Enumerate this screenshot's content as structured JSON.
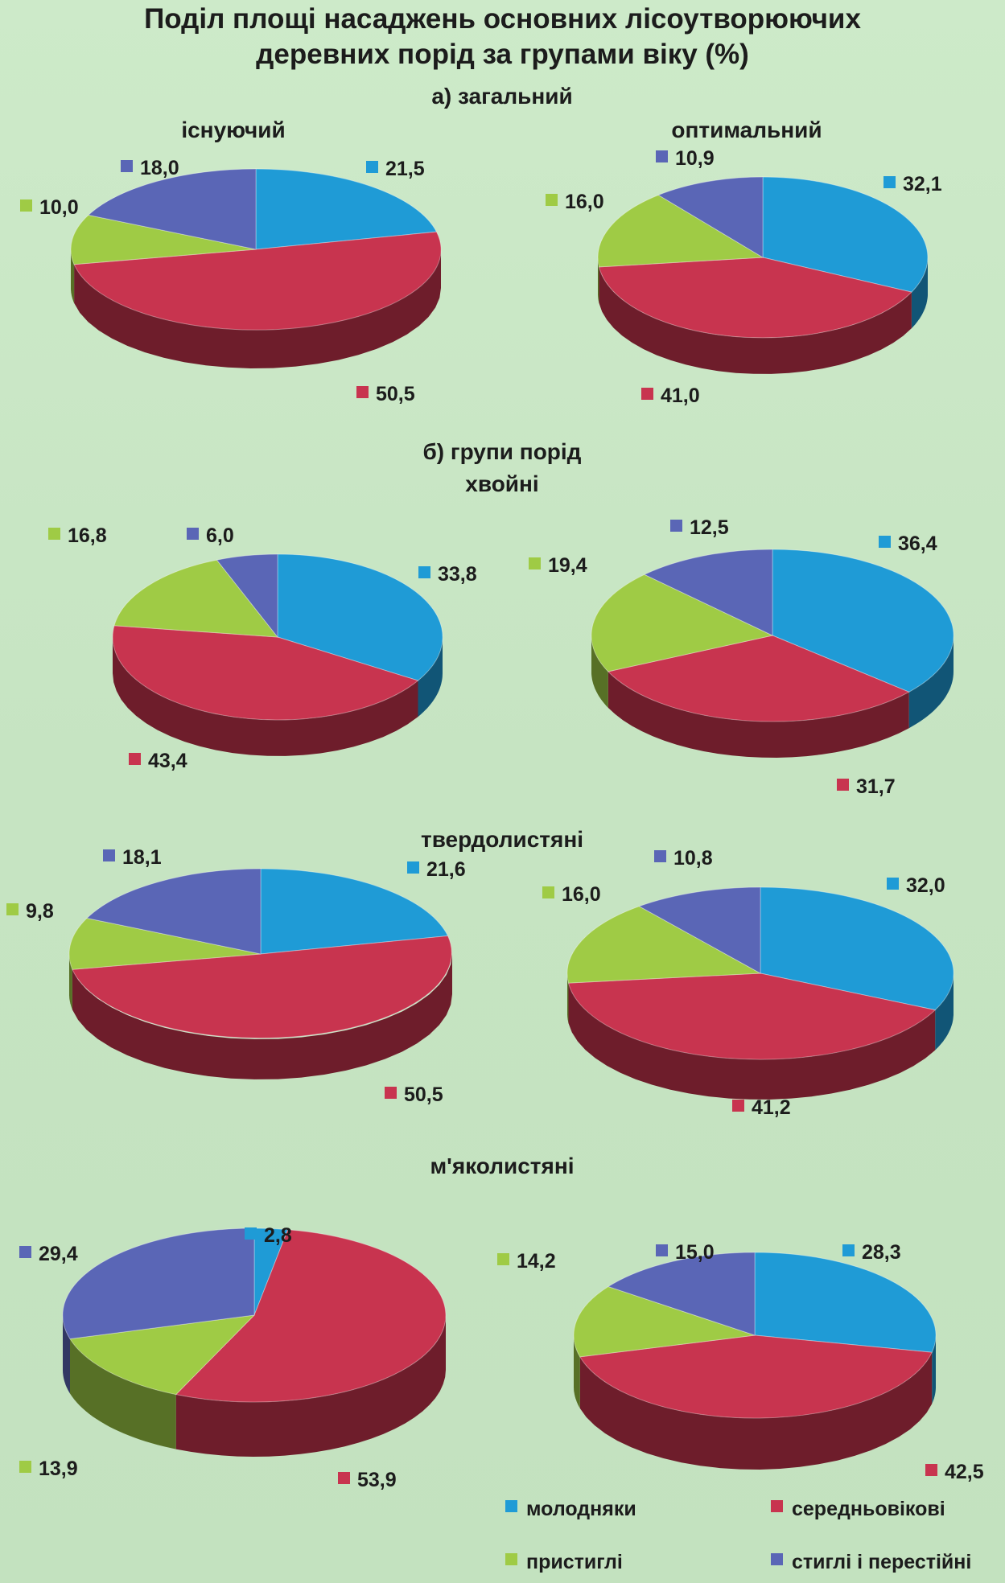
{
  "title_line1": "Поділ площі насаджень основних лісоутворюючих",
  "title_line2": "деревних порід за групами віку (%)",
  "section_a": "а) загальний",
  "section_b": "б) групи порід",
  "col_existing": "існуючий",
  "col_optimal": "оптимальний",
  "group_conifer": "хвойні",
  "group_hardwood": "твердолистяні",
  "group_softwood": "м'яколистяні",
  "colors": {
    "young": "#1f9bd6",
    "middle": "#c8344f",
    "premature": "#9fcb45",
    "mature": "#5a66b6"
  },
  "legend": [
    {
      "key": "young",
      "label": "молодняки"
    },
    {
      "key": "middle",
      "label": "середньовікові"
    },
    {
      "key": "premature",
      "label": "пристиглі"
    },
    {
      "key": "mature",
      "label": "стиглі і перестійні"
    }
  ],
  "chart_data": [
    {
      "type": "pie",
      "group": "загальний",
      "variant": "існуючий",
      "categories": [
        "молодняки",
        "середньовікові",
        "пристиглі",
        "стиглі і перестійні"
      ],
      "values": [
        21.5,
        50.5,
        10.0,
        18.0
      ],
      "labels": [
        "21,5",
        "50,5",
        "10,0",
        "18,0"
      ]
    },
    {
      "type": "pie",
      "group": "загальний",
      "variant": "оптимальний",
      "categories": [
        "молодняки",
        "середньовікові",
        "пристиглі",
        "стиглі і перестійні"
      ],
      "values": [
        32.1,
        41.0,
        16.0,
        10.9
      ],
      "labels": [
        "32,1",
        "41,0",
        "16,0",
        "10,9"
      ]
    },
    {
      "type": "pie",
      "group": "хвойні",
      "variant": "існуючий",
      "categories": [
        "молодняки",
        "середньовікові",
        "пристиглі",
        "стиглі і перестійні"
      ],
      "values": [
        33.8,
        43.4,
        16.8,
        6.0
      ],
      "labels": [
        "33,8",
        "43,4",
        "16,8",
        "6,0"
      ]
    },
    {
      "type": "pie",
      "group": "хвойні",
      "variant": "оптимальний",
      "categories": [
        "молодняки",
        "середньовікові",
        "пристиглі",
        "стиглі і перестійні"
      ],
      "values": [
        36.4,
        31.7,
        19.4,
        12.5
      ],
      "labels": [
        "36,4",
        "31,7",
        "19,4",
        "12,5"
      ]
    },
    {
      "type": "pie",
      "group": "твердолистяні",
      "variant": "існуючий",
      "categories": [
        "молодняки",
        "середньовікові",
        "пристиглі",
        "стиглі і перестійні"
      ],
      "values": [
        21.6,
        50.5,
        9.8,
        18.1
      ],
      "labels": [
        "21,6",
        "50,5",
        "9,8",
        "18,1"
      ]
    },
    {
      "type": "pie",
      "group": "твердолистяні",
      "variant": "оптимальний",
      "categories": [
        "молодняки",
        "середньовікові",
        "пристиглі",
        "стиглі і перестійні"
      ],
      "values": [
        32.0,
        41.2,
        16.0,
        10.8
      ],
      "labels": [
        "32,0",
        "41,2",
        "16,0",
        "10,8"
      ]
    },
    {
      "type": "pie",
      "group": "м'яколистяні",
      "variant": "існуючий",
      "categories": [
        "молодняки",
        "середньовікові",
        "пристиглі",
        "стиглі і перестійні"
      ],
      "values": [
        2.8,
        53.9,
        13.9,
        29.4
      ],
      "labels": [
        "2,8",
        "53,9",
        "13,9",
        "29,4"
      ]
    },
    {
      "type": "pie",
      "group": "м'яколистяні",
      "variant": "оптимальний",
      "categories": [
        "молодняки",
        "середньовікові",
        "пристиглі",
        "стиглі і перестійні"
      ],
      "values": [
        28.3,
        42.5,
        14.2,
        15.0
      ],
      "labels": [
        "28,3",
        "42,5",
        "14,2",
        "15,0"
      ]
    }
  ]
}
